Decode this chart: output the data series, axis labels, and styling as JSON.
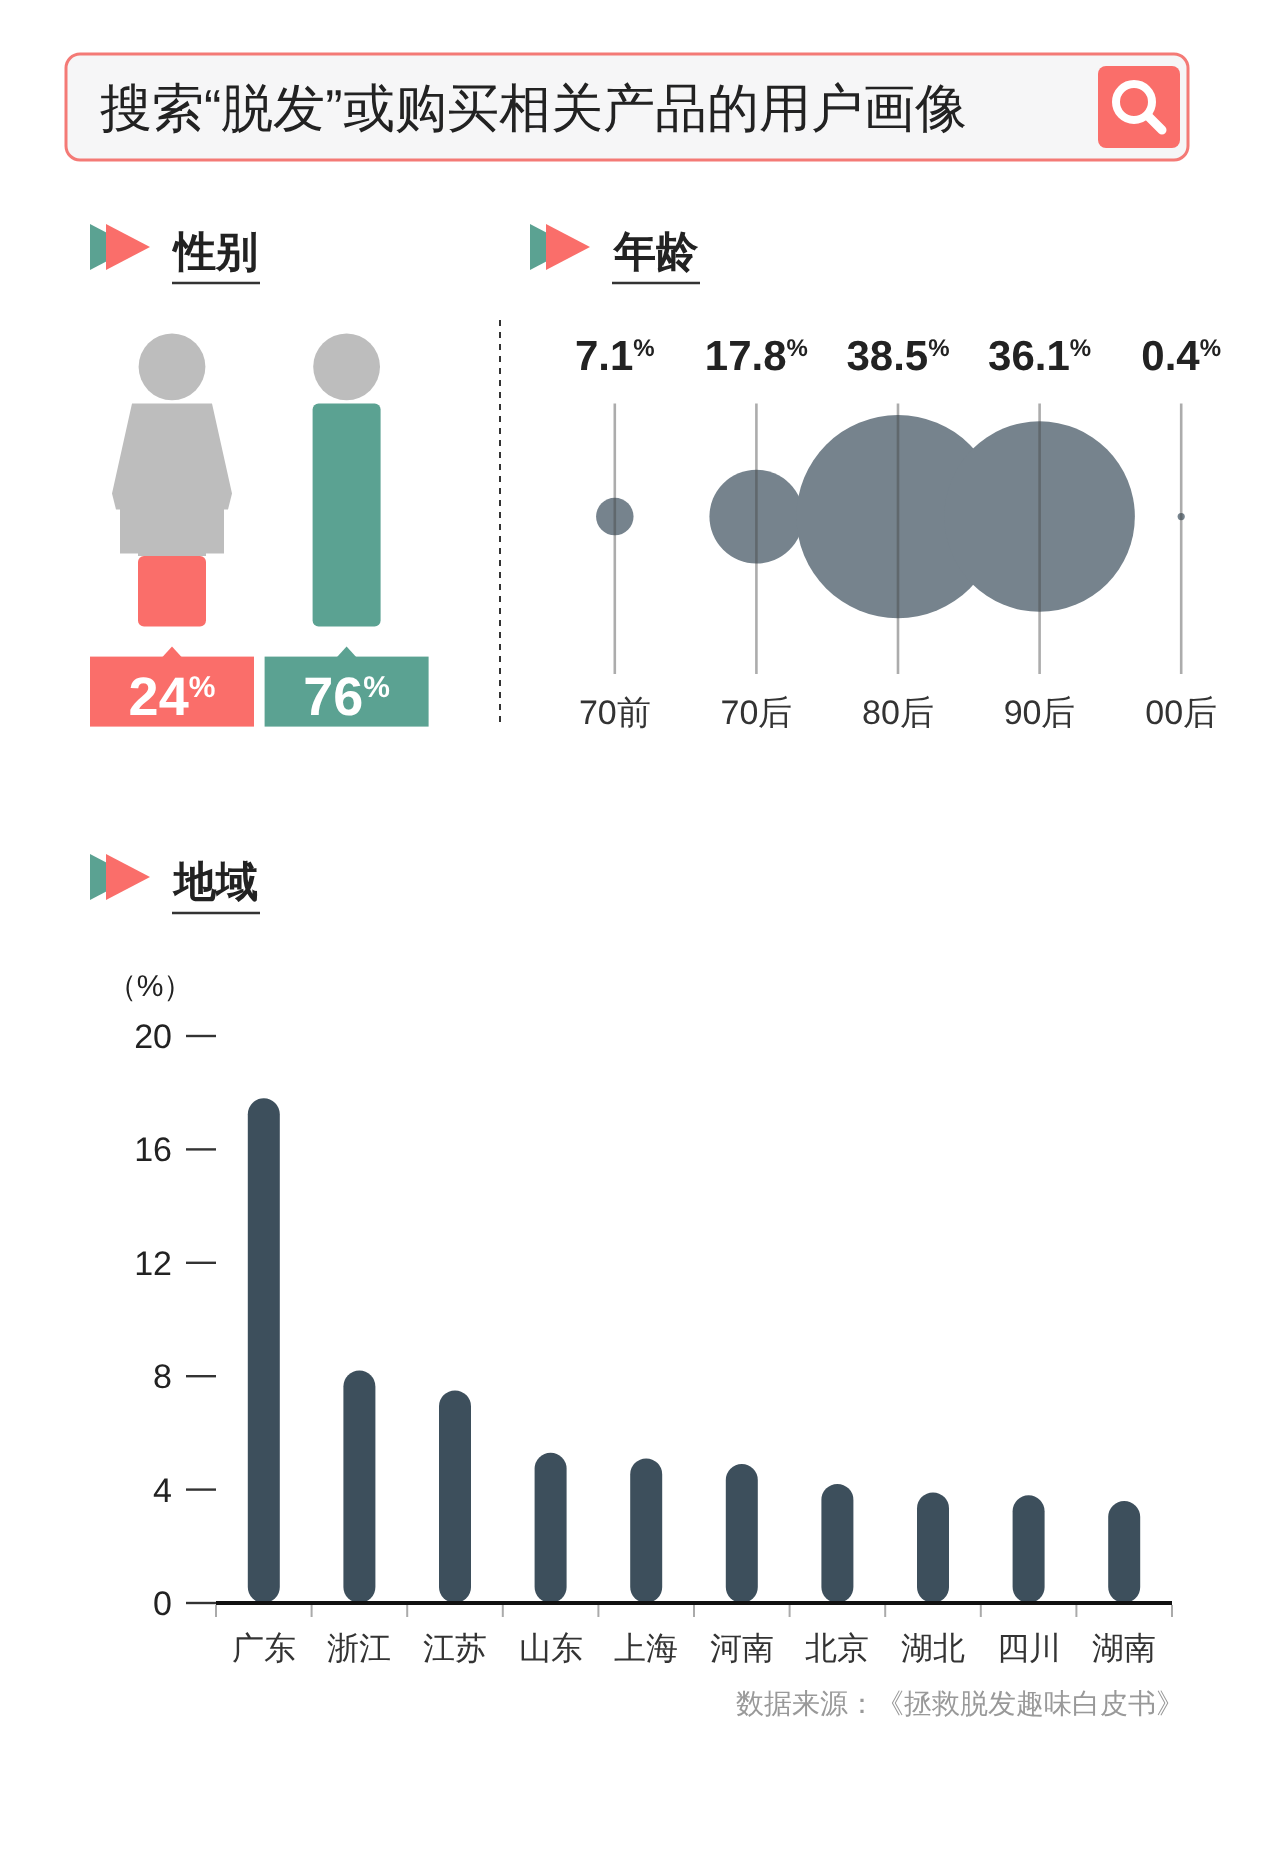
{
  "chart_data": [
    {
      "type": "other",
      "title": "搜索“脱发”或购买相关产品的用户画像"
    },
    {
      "type": "bar",
      "title": "性别",
      "categories": [
        null,
        null
      ],
      "values": [
        24,
        76
      ],
      "colors": [
        "#fa6e6a",
        "#5ba292"
      ],
      "value_labels": [
        "24$^{%}$",
        "76$^{%}$"
      ]
    },
    {
      "type": "other",
      "title": "年龄",
      "categories": [
        "70前",
        "70后",
        "80后",
        "90后",
        "00后"
      ],
      "values": [
        7.1,
        17.8,
        38.5,
        36.1,
        0.4
      ],
      "color": "#76838d",
      "value_labels": [
        "7.1$^{%}$",
        "17.8$^{%}$",
        "38.5$^{%}$",
        "36.1$^{%}$",
        "0.4$^{%}$"
      ]
    },
    {
      "type": "bar",
      "title": "地域",
      "categories": [
        "广东",
        "浙江",
        "江苏",
        "山东",
        "上海",
        "河南",
        "北京",
        "湖北",
        "四川",
        "湖南"
      ],
      "values": [
        17.8,
        8.2,
        7.5,
        5.3,
        5.1,
        4.9,
        4.2,
        3.9,
        3.8,
        3.6
      ],
      "color": "#3d4f5c",
      "ylabel": "（%）",
      "ylim": [
        0,
        20
      ],
      "yticks": [
        0,
        4,
        8,
        12,
        16,
        20
      ],
      "annotations": [
        "数据来源：《拯救脱发趣味白皮书》"
      ]
    }
  ]
}
